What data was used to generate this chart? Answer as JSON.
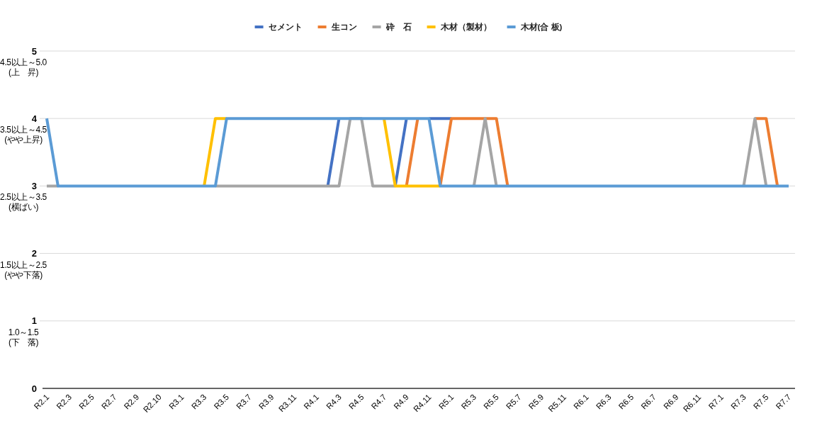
{
  "chart_data": {
    "type": "line",
    "categories": [
      "R2.1",
      null,
      "R2.3",
      null,
      "R2.5",
      null,
      "R2.7",
      null,
      "R2.9",
      null,
      "R2.10",
      null,
      "R3.1",
      null,
      "R3.3",
      null,
      "R3.5",
      null,
      "R3.7",
      null,
      "R3.9",
      null,
      "R3.11",
      null,
      "R4.1",
      null,
      "R4.3",
      null,
      "R4.5",
      null,
      "R4.7",
      null,
      "R4.9",
      null,
      "R4.11",
      null,
      "R5.1",
      null,
      "R5.3",
      null,
      "R5.5",
      null,
      "R5.7",
      null,
      "R5.9",
      null,
      "R5.11",
      null,
      "R6.1",
      null,
      "R6.3",
      null,
      "R6.5",
      null,
      "R6.7",
      null,
      "R6.9",
      null,
      "R6.11",
      null,
      "R7.1",
      null,
      "R7.3",
      null,
      "R7.5",
      null,
      "R7.7"
    ],
    "series": [
      {
        "name": "セメント",
        "color": "#4472c4",
        "values": [
          null,
          null,
          null,
          null,
          null,
          null,
          null,
          null,
          null,
          null,
          null,
          null,
          null,
          null,
          null,
          null,
          null,
          null,
          null,
          null,
          null,
          null,
          null,
          null,
          null,
          3,
          4,
          null,
          null,
          null,
          null,
          3,
          4,
          null,
          4,
          4,
          4,
          null,
          null,
          null,
          null,
          null,
          null,
          null,
          null,
          null,
          null,
          null,
          null,
          null,
          null,
          null,
          null,
          null,
          null,
          null,
          null,
          null,
          null,
          null,
          null,
          null,
          null,
          null,
          null,
          null,
          null
        ]
      },
      {
        "name": "生コン",
        "color": "#ed7d31",
        "values": [
          null,
          null,
          null,
          null,
          null,
          null,
          null,
          null,
          null,
          null,
          null,
          null,
          null,
          null,
          null,
          null,
          null,
          null,
          null,
          null,
          null,
          null,
          null,
          null,
          null,
          null,
          null,
          null,
          null,
          null,
          null,
          null,
          3,
          4,
          null,
          3,
          4,
          4,
          4,
          4,
          4,
          3,
          null,
          null,
          null,
          null,
          null,
          null,
          null,
          null,
          null,
          null,
          null,
          null,
          null,
          null,
          null,
          null,
          null,
          null,
          null,
          null,
          null,
          4,
          4,
          3,
          null
        ]
      },
      {
        "name": "砕　石",
        "color": "#a5a5a5",
        "values": [
          3,
          3,
          null,
          null,
          null,
          null,
          null,
          null,
          null,
          null,
          null,
          null,
          null,
          null,
          null,
          3,
          3,
          3,
          3,
          3,
          3,
          3,
          3,
          3,
          3,
          3,
          3,
          4,
          4,
          3,
          3,
          3,
          null,
          null,
          null,
          null,
          null,
          null,
          3,
          4,
          3,
          null,
          null,
          null,
          null,
          null,
          null,
          null,
          null,
          null,
          null,
          null,
          null,
          null,
          null,
          null,
          null,
          null,
          null,
          null,
          null,
          null,
          3,
          4,
          3,
          null,
          null
        ]
      },
      {
        "name": "木材（製材）",
        "color": "#ffc000",
        "values": [
          null,
          null,
          null,
          null,
          null,
          null,
          null,
          null,
          null,
          null,
          null,
          null,
          null,
          null,
          3,
          4,
          4,
          null,
          null,
          null,
          null,
          null,
          null,
          null,
          null,
          null,
          null,
          null,
          null,
          null,
          4,
          3,
          3,
          3,
          3,
          3,
          null,
          null,
          null,
          null,
          null,
          null,
          null,
          null,
          null,
          null,
          null,
          null,
          null,
          null,
          null,
          null,
          null,
          null,
          null,
          null,
          null,
          null,
          null,
          null,
          null,
          null,
          null,
          null,
          null,
          null,
          null
        ]
      },
      {
        "name": "木材(合 板)",
        "color": "#5b9bd5",
        "values": [
          4,
          3,
          3,
          3,
          3,
          3,
          3,
          3,
          3,
          3,
          3,
          3,
          3,
          3,
          3,
          3,
          4,
          4,
          4,
          4,
          4,
          4,
          4,
          4,
          4,
          4,
          4,
          4,
          4,
          4,
          4,
          4,
          4,
          4,
          4,
          3,
          3,
          3,
          3,
          3,
          3,
          3,
          3,
          3,
          3,
          3,
          3,
          3,
          3,
          3,
          3,
          3,
          3,
          3,
          3,
          3,
          3,
          3,
          3,
          3,
          3,
          3,
          3,
          3,
          3,
          3,
          3
        ]
      }
    ],
    "ylim": [
      0,
      5
    ],
    "yticks": [
      0,
      1,
      2,
      3,
      4,
      5
    ],
    "grid": "y",
    "legend": "top",
    "annotations": [
      "4.5以上～5.0\n(上　昇)",
      "3.5以上～4.5\n(やや上昇)",
      "2.5以上～3.5\n(横ばい)",
      "1.5以上～2.5\n(やや下落)",
      "1.0～1.5\n(下　落)"
    ]
  }
}
